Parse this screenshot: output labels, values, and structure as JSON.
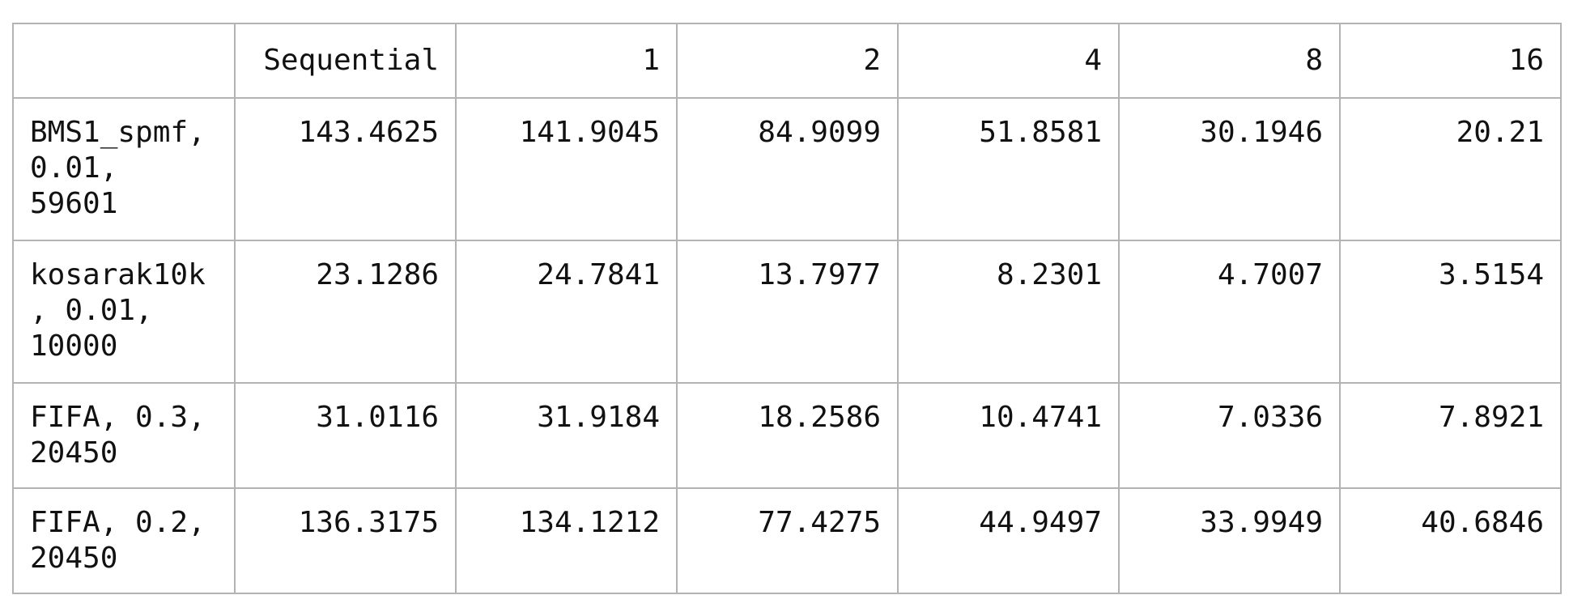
{
  "table": {
    "columns": [
      "",
      "Sequential",
      "1",
      "2",
      "4",
      "8",
      "16"
    ],
    "rows": [
      {
        "label": "BMS1_spmf, 0.01, 59601",
        "values": [
          "143.4625",
          "141.9045",
          "84.9099",
          "51.8581",
          "30.1946",
          "20.21"
        ]
      },
      {
        "label": "kosarak10k, 0.01, 10000",
        "values": [
          "23.1286",
          "24.7841",
          "13.7977",
          "8.2301",
          "4.7007",
          "3.5154"
        ]
      },
      {
        "label": "FIFA, 0.3, 20450",
        "values": [
          "31.0116",
          "31.9184",
          "18.2586",
          "10.4741",
          "7.0336",
          "7.8921"
        ]
      },
      {
        "label": "FIFA, 0.2, 20450",
        "values": [
          "136.3175",
          "134.1212",
          "77.4275",
          "44.9497",
          "33.9949",
          "40.6846"
        ]
      }
    ]
  }
}
